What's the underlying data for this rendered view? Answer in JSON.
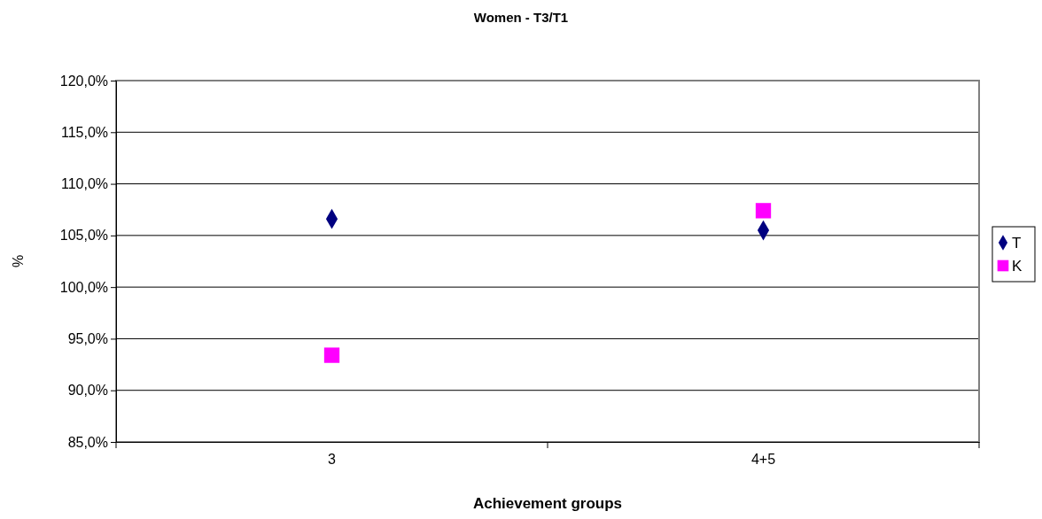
{
  "chart_data": {
    "type": "scatter",
    "title": "Women - T3/T1",
    "xlabel": "Achievement groups",
    "ylabel": "%",
    "categories": [
      "3",
      "4+5"
    ],
    "series": [
      {
        "name": "T",
        "color": "#000080",
        "marker": "diamond",
        "values": [
          106.6,
          105.5
        ]
      },
      {
        "name": "K",
        "color": "#ff00ff",
        "marker": "square",
        "values": [
          93.4,
          107.4
        ]
      }
    ],
    "ylim": [
      85,
      120
    ],
    "yticks": [
      {
        "value": 85,
        "label": "85,0%"
      },
      {
        "value": 90,
        "label": "90,0%"
      },
      {
        "value": 95,
        "label": "95,0%"
      },
      {
        "value": 100,
        "label": "100,0%"
      },
      {
        "value": 105,
        "label": "105,0%"
      },
      {
        "value": 110,
        "label": "110,0%"
      },
      {
        "value": 115,
        "label": "115,0%"
      },
      {
        "value": 120,
        "label": "120,0%"
      }
    ],
    "grid": "y",
    "legend": "right"
  }
}
